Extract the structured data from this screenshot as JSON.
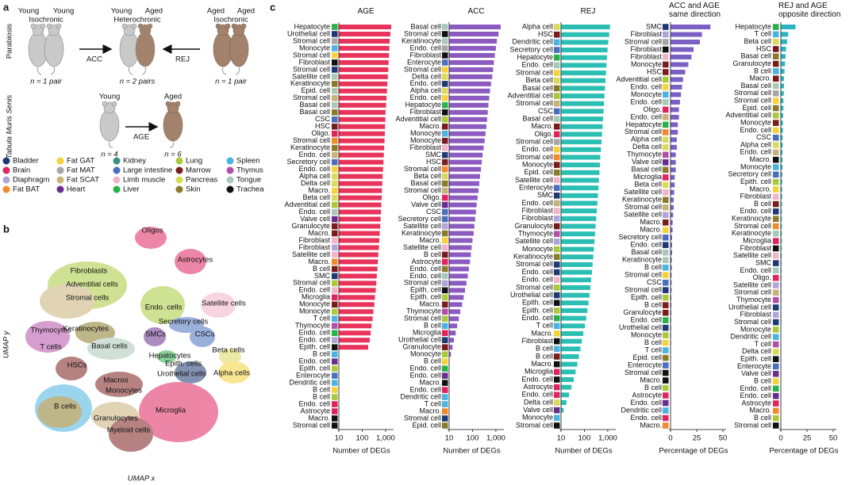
{
  "panel_labels": [
    "a",
    "b",
    "c"
  ],
  "panel_a": {
    "side_labels": [
      "Parabiosis",
      "Tabula Muris Senis"
    ],
    "groups": [
      {
        "top": [
          "Young",
          "Young"
        ],
        "kind": "Isochronic",
        "n": "n = 1 pair"
      },
      {
        "top": [
          "Young",
          "Aged"
        ],
        "kind": "Heterochronic",
        "n": "n = 2 pairs"
      },
      {
        "top": [
          "Aged",
          "Aged"
        ],
        "kind": "Isochronic",
        "n": "n = 1 pair"
      }
    ],
    "arrows": [
      "ACC",
      "REJ"
    ],
    "aging": {
      "labels": [
        "Young",
        "Aged"
      ],
      "arrow": "AGE",
      "n": [
        "n = 4",
        "n = 6"
      ]
    }
  },
  "legend": [
    {
      "name": "Bladder",
      "color": "#1f3a73"
    },
    {
      "name": "Brain",
      "color": "#e0245e"
    },
    {
      "name": "Diaphragm",
      "color": "#b0a4d8"
    },
    {
      "name": "Fat BAT",
      "color": "#f08a2a"
    },
    {
      "name": "Fat GAT",
      "color": "#f5d23a"
    },
    {
      "name": "Fat MAT",
      "color": "#a7a7a7"
    },
    {
      "name": "Fat SCAT",
      "color": "#c7b27a"
    },
    {
      "name": "Heart",
      "color": "#6a2d8f"
    },
    {
      "name": "Kidney",
      "color": "#3a8f84"
    },
    {
      "name": "Large intestine",
      "color": "#4a6fbf"
    },
    {
      "name": "Limb muscle",
      "color": "#f2b3c8"
    },
    {
      "name": "Liver",
      "color": "#2bb14a"
    },
    {
      "name": "Lung",
      "color": "#a9c93a"
    },
    {
      "name": "Marrow",
      "color": "#7a1c1c"
    },
    {
      "name": "Pancreas",
      "color": "#d9d95a"
    },
    {
      "name": "Skin",
      "color": "#8a7a2a"
    },
    {
      "name": "Spleen",
      "color": "#4ab3e0"
    },
    {
      "name": "Thymus",
      "color": "#b44fa8"
    },
    {
      "name": "Tongue",
      "color": "#a8c8b8"
    },
    {
      "name": "Trachea",
      "color": "#111111"
    }
  ],
  "panel_b": {
    "x_label": "UMAP x",
    "y_label": "UMAP y",
    "clusters": [
      "Oligos",
      "Astrocytes",
      "Fibroblasts",
      "Adventitial cells",
      "Stromal cells",
      "Endo. cells",
      "Satellite cells",
      "Secretory cells",
      "Thymocytes",
      "Keratinocytes",
      "T cells",
      "Basal cells",
      "SMCs",
      "CSCs",
      "Beta cells",
      "Hepatocytes",
      "Epith. cells",
      "HSCs",
      "Urothelial cells",
      "Alpha cells",
      "Macros",
      "Monocytes",
      "B cells",
      "Granulocytes",
      "Microglia",
      "Myeloid cells"
    ]
  },
  "chart_data": [
    {
      "type": "bar",
      "title": "AGE",
      "xlabel": "Number of DEGs",
      "color": "#e8345a",
      "log_scale": true,
      "xlim": [
        10,
        2200
      ],
      "xticks": [
        10,
        100,
        {
          "value": 1000,
          "label": "1,000"
        }
      ],
      "categories": [
        "Hepatocyte",
        "Urothelial cell",
        "Stromal cell",
        "Monocyte",
        "Stromal cell",
        "Fibroblast",
        "Stromal cell",
        "Satellite cell",
        "Keratinocyte",
        "Epid. cell",
        "Stromal cell",
        "Basal cell",
        "Basal cell",
        "CSC",
        "HSC",
        "Oligo.",
        "Stromal cell",
        "Keratinocyte",
        "Endo. cell",
        "Secretory cell",
        "Endo. cell",
        "Alpha cell",
        "Delta cell",
        "Macro.",
        "Beta cell",
        "Adventitial cell",
        "Endo. cell",
        "Valve cell",
        "Granulocyte",
        "Macro.",
        "Fibroblast",
        "Fibroblast",
        "Satellite cell",
        "Macro.",
        "B cell",
        "SMC",
        "Stromal cell",
        "Endo. cell",
        "Microglia",
        "Monocyte",
        "Monocyte",
        "T cell",
        "Thymocyte",
        "Endo. cell",
        "Endo. cell",
        "Epith. cell",
        "B cell",
        "Endo. cell",
        "Epith. cell",
        "Enterocyte",
        "Dendritic cell",
        "B cell",
        "B cell",
        "Endo. cell",
        "Astrocyte",
        "Macro.",
        "Stromal cell"
      ],
      "values": [
        1750,
        1600,
        1500,
        1450,
        1400,
        1350,
        1300,
        1250,
        1200,
        1150,
        1100,
        1050,
        1000,
        980,
        950,
        930,
        900,
        870,
        840,
        810,
        780,
        750,
        720,
        700,
        680,
        660,
        640,
        610,
        590,
        560,
        540,
        520,
        490,
        470,
        450,
        420,
        400,
        380,
        350,
        330,
        300,
        280,
        250,
        230,
        210,
        180,
        null,
        null,
        null,
        null,
        null,
        null,
        null,
        null,
        null,
        null,
        null
      ],
      "colors": [
        "#2bb14a",
        "#1f3a73",
        "#a7a7a7",
        "#4ab3e0",
        "#f5d23a",
        "#111111",
        "#1f3a73",
        "#a8c8b8",
        "#8a7a2a",
        "#a8c8b8",
        "#c7b27a",
        "#a8c8b8",
        "#8a7a2a",
        "#4a6fbf",
        "#7a1c1c",
        "#e0245e",
        "#f08a2a",
        "#8a7a2a",
        "#c7b27a",
        "#4a6fbf",
        "#f5d23a",
        "#d9d95a",
        "#d9d95a",
        "#f5d23a",
        "#d9d95a",
        "#a9c93a",
        "#a8c8b8",
        "#6a2d8f",
        "#7a1c1c",
        "#7a1c1c",
        "#f2b3c8",
        "#b0a4d8",
        "#f2b3c8",
        "#f08a2a",
        "#7a1c1c",
        "#1f3a73",
        "#a9c93a",
        "#f2b3c8",
        "#e0245e",
        "#7a1c1c",
        "#a9c93a",
        "#4ab3e0",
        "#b44fa8",
        "#2bb14a",
        "#b0a4d8",
        "#111111",
        "#4ab3e0",
        "#6a2d8f",
        "#a9c93a",
        "#4a6fbf",
        "#4ab3e0",
        "#f5d23a",
        "#a9c93a",
        "#e0245e",
        "#e0245e",
        "#111111",
        "#111111"
      ]
    },
    {
      "type": "bar",
      "title": "ACC",
      "xlabel": "Number of DEGs",
      "color": "#8b5bbf",
      "log_scale": true,
      "xlim": [
        10,
        2200
      ],
      "xticks": [
        10,
        100,
        {
          "value": 1000,
          "label": "1,000"
        }
      ],
      "categories": [
        "Basal cell",
        "Stromal cell",
        "Keratinocyte",
        "Endo. cell",
        "Fibroblast",
        "Enterocyte",
        "Stromal cell",
        "Delta cell",
        "Endo. cell",
        "Alpha cell",
        "Endo. cell",
        "Hepatocyte",
        "Fibroblast",
        "Adventitial cell",
        "Macro.",
        "Monocyte",
        "Monocyte",
        "Fibroblast",
        "SMC",
        "HSC",
        "Stromal cell",
        "Beta cell",
        "Basal cell",
        "Stromal cell",
        "Oligo.",
        "Valve cell",
        "CSC",
        "Secretory cell",
        "Satellite cell",
        "Keratinocyte",
        "Macro.",
        "Satellite cell",
        "B cell",
        "Astrocyte",
        "Endo. cell",
        "Endo. cell",
        "Stromal cell",
        "Epith. cell",
        "Epith. cell",
        "Macro.",
        "Thymocyte",
        "Stromal cell",
        "B cell",
        "Microglia",
        "Urothelial cell",
        "Granulocyte",
        "Monocyte",
        "B cell",
        "Endo. cell",
        "Endo. cell",
        "Macro.",
        "Endo. cell",
        "Dendritic cell",
        "T cell",
        "Macro.",
        "Stromal cell",
        "Epid. cell"
      ],
      "values": [
        1600,
        1300,
        1100,
        1000,
        900,
        820,
        760,
        700,
        620,
        560,
        520,
        480,
        450,
        420,
        390,
        360,
        330,
        300,
        270,
        250,
        230,
        210,
        195,
        180,
        165,
        150,
        140,
        130,
        120,
        112,
        100,
        92,
        85,
        78,
        70,
        63,
        55,
        48,
        42,
        36,
        30,
        26,
        22,
        19,
        16,
        14,
        12,
        null,
        null,
        null,
        null,
        null,
        null,
        null,
        null,
        null,
        null
      ],
      "colors": [
        "#a8c8b8",
        "#111111",
        "#a8c8b8",
        "#a7a7a7",
        "#111111",
        "#4a6fbf",
        "#f5d23a",
        "#d9d95a",
        "#1f3a73",
        "#d9d95a",
        "#f5d23a",
        "#2bb14a",
        "#111111",
        "#a9c93a",
        "#7a1c1c",
        "#4ab3e0",
        "#7a1c1c",
        "#f2b3c8",
        "#1f3a73",
        "#7a1c1c",
        "#f08a2a",
        "#d9d95a",
        "#8a7a2a",
        "#c7b27a",
        "#e0245e",
        "#6a2d8f",
        "#4a6fbf",
        "#4a6fbf",
        "#b0a4d8",
        "#8a7a2a",
        "#f5d23a",
        "#f2b3c8",
        "#7a1c1c",
        "#e0245e",
        "#8a7a2a",
        "#a8c8b8",
        "#b0a4d8",
        "#111111",
        "#a9c93a",
        "#7a1c1c",
        "#b44fa8",
        "#a9c93a",
        "#4ab3e0",
        "#e0245e",
        "#1f3a73",
        "#7a1c1c",
        "#a9c93a",
        "#f5d23a",
        "#2bb14a",
        "#6a2d8f",
        "#111111",
        "#e0245e",
        "#4ab3e0",
        "#4ab3e0",
        "#f08a2a",
        "#1f3a73",
        "#8a7a2a"
      ]
    },
    {
      "type": "bar",
      "title": "REJ",
      "xlabel": "Number of DEGs",
      "color": "#2bbfb3",
      "log_scale": true,
      "xlim": [
        10,
        2200
      ],
      "xticks": [
        10,
        100,
        {
          "value": 1000,
          "label": "1,000"
        }
      ],
      "categories": [
        "Alpha cell",
        "HSC",
        "Dendritic cell",
        "Secretory cell",
        "Hepatocyte",
        "Endo. cell",
        "Stromal cell",
        "Beta cell",
        "Basal cell",
        "Adventitial cell",
        "Stromal cell",
        "CSC",
        "Basal cell",
        "Macro.",
        "Oligo.",
        "Stromal cell",
        "Endo. cell",
        "Stromal cell",
        "Monocyte",
        "Epid. cell",
        "Satellite cell",
        "Enterocyte",
        "SMC",
        "Endo. cell",
        "Fibroblast",
        "Fibroblast",
        "Granulocyte",
        "Thymocyte",
        "Satellite cell",
        "Monocyte",
        "Keratinocyte",
        "Stromal cell",
        "Endo. cell",
        "Endo. cell",
        "Stromal cell",
        "Urothelial cell",
        "Epith. cell",
        "Epith. cell",
        "Endo. cell",
        "T cell",
        "Macro.",
        "Fibroblast",
        "B cell",
        "B cell",
        "Macro.",
        "Microglia",
        "Endo. cell",
        "Astrocyte",
        "Endo. cell",
        "Delta cell",
        "Valve cell",
        "Monocyte",
        "Stromal cell"
      ],
      "values": [
        1250,
        1150,
        1050,
        980,
        920,
        880,
        840,
        800,
        760,
        720,
        690,
        660,
        630,
        600,
        570,
        540,
        510,
        480,
        460,
        440,
        420,
        400,
        380,
        360,
        340,
        320,
        300,
        285,
        270,
        255,
        240,
        225,
        210,
        195,
        180,
        165,
        150,
        135,
        120,
        105,
        90,
        78,
        68,
        58,
        50,
        42,
        35,
        28,
        22,
        17,
        13,
        null,
        null
      ],
      "colors": [
        "#d9d95a",
        "#7a1c1c",
        "#4ab3e0",
        "#4a6fbf",
        "#2bb14a",
        "#a8c8b8",
        "#f5d23a",
        "#d9d95a",
        "#8a7a2a",
        "#a9c93a",
        "#c7b27a",
        "#4a6fbf",
        "#a8c8b8",
        "#7a1c1c",
        "#e0245e",
        "#a7a7a7",
        "#f5d23a",
        "#f08a2a",
        "#7a1c1c",
        "#8a7a2a",
        "#f2b3c8",
        "#4a6fbf",
        "#1f3a73",
        "#c7b27a",
        "#f2b3c8",
        "#b0a4d8",
        "#7a1c1c",
        "#b44fa8",
        "#b0a4d8",
        "#a9c93a",
        "#8a7a2a",
        "#1f3a73",
        "#1f3a73",
        "#f2b3c8",
        "#a9c93a",
        "#1f3a73",
        "#111111",
        "#a9c93a",
        "#2bb14a",
        "#4ab3e0",
        "#f5d23a",
        "#111111",
        "#4ab3e0",
        "#7a1c1c",
        "#111111",
        "#e0245e",
        "#111111",
        "#e0245e",
        "#e0245e",
        "#d9d95a",
        "#6a2d8f",
        "#4ab3e0",
        "#111111"
      ]
    },
    {
      "type": "bar",
      "title": "ACC and AGE same direction",
      "xlabel": "Percentage of DEGs",
      "color": "#7a5fc4",
      "log_scale": false,
      "xlim": [
        0,
        53
      ],
      "xticks": [
        0,
        25,
        50
      ],
      "categories": [
        "SMC",
        "Fibroblast",
        "Stromal cell",
        "Fibroblast",
        "Fibroblast",
        "Monocyte",
        "HSC",
        "Adventitial cell",
        "Endo. cell",
        "Monocyte",
        "Endo. cell",
        "Oligo.",
        "Endo. cell",
        "Hepatocyte",
        "Stromal cell",
        "Alpha cell",
        "Delta cell",
        "Thymocyte",
        "Valve cell",
        "Basal cell",
        "Microglia",
        "Beta cell",
        "Satellite cell",
        "Keratinocyte",
        "Stromal cell",
        "Satellite cell",
        "Macro.",
        "Macro.",
        "Secretory cell",
        "Endo. cell",
        "Basal cell",
        "Keratinocyte",
        "B cell",
        "Stromal cell",
        "CSC",
        "Stromal cell",
        "Epith. cell",
        "B cell",
        "Granulocyte",
        "Endo. cell",
        "Urothelial cell",
        "Monocyte",
        "B cell",
        "T cell",
        "Epid. cell",
        "Enterocyte",
        "Stromal cell",
        "Macro.",
        "B cell",
        "Astrocyte",
        "Endo. cell",
        "Dendritic cell",
        "Endo. cell",
        "Macro."
      ],
      "values": [
        38,
        30,
        28,
        22,
        20,
        17,
        14,
        12,
        11,
        10,
        9,
        8,
        8,
        7,
        7,
        6,
        6,
        5,
        5,
        5,
        4,
        4,
        3.5,
        3,
        3,
        2.5,
        2,
        2,
        1.5,
        1.5,
        1.5,
        1.2,
        1.2,
        1,
        1,
        1,
        0.8,
        0.8,
        0.8,
        0.6,
        0.6,
        0.5,
        0.5,
        0.4,
        0.4,
        0.3,
        0.3,
        0.3,
        0.2,
        0.2,
        0.2,
        0.1,
        0.1,
        0.1
      ],
      "colors": [
        "#1f3a73",
        "#b0a4d8",
        "#a7a7a7",
        "#111111",
        "#f2b3c8",
        "#7a1c1c",
        "#7a1c1c",
        "#a9c93a",
        "#f5d23a",
        "#4ab3e0",
        "#a8c8b8",
        "#e0245e",
        "#c7b27a",
        "#2bb14a",
        "#f08a2a",
        "#d9d95a",
        "#d9d95a",
        "#b44fa8",
        "#6a2d8f",
        "#8a7a2a",
        "#e0245e",
        "#d9d95a",
        "#f2b3c8",
        "#8a7a2a",
        "#c7b27a",
        "#b0a4d8",
        "#7a1c1c",
        "#f5d23a",
        "#4a6fbf",
        "#1f3a73",
        "#a8c8b8",
        "#a8c8b8",
        "#4ab3e0",
        "#f5d23a",
        "#4a6fbf",
        "#1f3a73",
        "#a9c93a",
        "#7a1c1c",
        "#7a1c1c",
        "#2bb14a",
        "#1f3a73",
        "#a9c93a",
        "#f5d23a",
        "#4ab3e0",
        "#8a7a2a",
        "#4a6fbf",
        "#111111",
        "#111111",
        "#a9c93a",
        "#e0245e",
        "#6a2d8f",
        "#4ab3e0",
        "#e0245e",
        "#f08a2a"
      ]
    },
    {
      "type": "bar",
      "title": "REJ and AGE opposite direction",
      "xlabel": "Percentage of DEGs",
      "color": "#28b5c0",
      "log_scale": false,
      "xlim": [
        0,
        53
      ],
      "xticks": [
        0,
        25,
        50
      ],
      "categories": [
        "Hepatocyte",
        "T cell",
        "Beta cell",
        "HSC",
        "Basal cell",
        "Granulocyte",
        "B cell",
        "Macro.",
        "Basal cell",
        "Stromal cell",
        "Stromal cell",
        "Epid. cell",
        "Adventitial cell",
        "Monocyte",
        "Endo. cell",
        "CSC",
        "Alpha cell",
        "Endo. cell",
        "Macro.",
        "Monocyte",
        "Secretory cell",
        "Epith. cell",
        "Macro.",
        "Fibroblast",
        "B cell",
        "Endo. cell",
        "Keratinocyte",
        "Stromal cell",
        "Keratinocyte",
        "Microglia",
        "Fibroblast",
        "Satellite cell",
        "SMC",
        "Endo. cell",
        "Oligo.",
        "Satellite cell",
        "Stromal cell",
        "Thymocyte",
        "Urothelial cell",
        "Fibroblast",
        "Stromal cell",
        "Monocyte",
        "Dendritic cell",
        "T cell",
        "Delta cell",
        "Epith. cell",
        "Enterocyte",
        "Valve cell",
        "B cell",
        "Endo. cell",
        "Endo. cell",
        "Astrocyte",
        "Macro.",
        "B cell",
        "Stromal cell"
      ],
      "values": [
        14,
        7,
        6,
        5,
        4.5,
        4,
        3.5,
        3,
        3,
        2.8,
        2.5,
        2.5,
        2.2,
        2,
        2,
        1.8,
        1.8,
        1.6,
        1.5,
        1.5,
        1.4,
        1.3,
        1.2,
        1.2,
        1.1,
        1,
        1,
        1,
        0.9,
        0.9,
        0.8,
        0.8,
        0.7,
        0.7,
        0.7,
        0.6,
        0.6,
        0.6,
        0.5,
        0.5,
        0.5,
        0.4,
        0.4,
        0.4,
        0.3,
        0.3,
        0.3,
        0.3,
        0.2,
        0.2,
        0.2,
        0.2,
        0.1,
        0.1,
        0.1
      ],
      "colors": [
        "#2bb14a",
        "#4ab3e0",
        "#d9d95a",
        "#7a1c1c",
        "#8a7a2a",
        "#7a1c1c",
        "#4ab3e0",
        "#7a1c1c",
        "#a8c8b8",
        "#a7a7a7",
        "#f5d23a",
        "#8a7a2a",
        "#a9c93a",
        "#7a1c1c",
        "#f5d23a",
        "#4a6fbf",
        "#d9d95a",
        "#c7b27a",
        "#111111",
        "#4ab3e0",
        "#4a6fbf",
        "#a9c93a",
        "#f5d23a",
        "#f2b3c8",
        "#7a1c1c",
        "#1f3a73",
        "#8a7a2a",
        "#f08a2a",
        "#a8c8b8",
        "#e0245e",
        "#111111",
        "#f2b3c8",
        "#1f3a73",
        "#a8c8b8",
        "#e0245e",
        "#b0a4d8",
        "#c7b27a",
        "#b44fa8",
        "#1f3a73",
        "#b0a4d8",
        "#1f3a73",
        "#a9c93a",
        "#4ab3e0",
        "#b44fa8",
        "#d9d95a",
        "#111111",
        "#4a6fbf",
        "#6a2d8f",
        "#f5d23a",
        "#2bb14a",
        "#6a2d8f",
        "#e0245e",
        "#f08a2a",
        "#a9c93a",
        "#111111"
      ]
    }
  ]
}
